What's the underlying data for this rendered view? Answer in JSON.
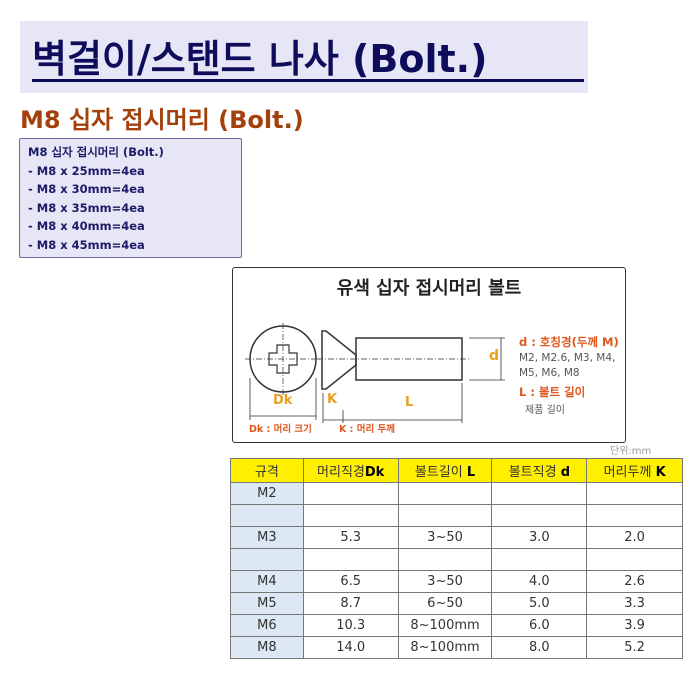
{
  "title": "벽걸이/스탠드 나사 (Bolt.)",
  "subtitle": "M8 십자 접시머리 (Bolt.)",
  "contents": {
    "heading": "M8 십자 접시머리 (Bolt.)",
    "items": [
      "- M8 x 25mm=4ea",
      "- M8 x 30mm=4ea",
      "- M8 x 35mm=4ea",
      "- M8 x 40mm=4ea",
      "- M8 x 45mm=4ea"
    ]
  },
  "diagram": {
    "title": "유색 십자 접시머리 볼트",
    "dk": "Dk",
    "k": "K",
    "l": "L",
    "d": "d",
    "dk_caption": "Dk : 머리 크기",
    "k_caption": "K : 머리 두께",
    "d_label": "d : 호칭경(두께 M)",
    "d_values_1": "M2, M2.6, M3, M4,",
    "d_values_2": "M5, M6, M8",
    "l_label": "L : 볼트 길이",
    "l_desc": "제품 길이"
  },
  "unit": "단위:mm",
  "table": {
    "headers": [
      {
        "text": "규격",
        "sym": ""
      },
      {
        "text": "머리직경",
        "sym": "Dk"
      },
      {
        "text": "볼트길이 ",
        "sym": "L"
      },
      {
        "text": "볼트직경 ",
        "sym": "d"
      },
      {
        "text": "머리두께 ",
        "sym": "K"
      }
    ],
    "rows": [
      [
        "M2",
        "",
        "",
        "",
        ""
      ],
      [
        "",
        "",
        "",
        "",
        ""
      ],
      [
        "M3",
        "5.3",
        "3~50",
        "3.0",
        "2.0"
      ],
      [
        "",
        "",
        "",
        "",
        ""
      ],
      [
        "M4",
        "6.5",
        "3~50",
        "4.0",
        "2.6"
      ],
      [
        "M5",
        "8.7",
        "6~50",
        "5.0",
        "3.3"
      ],
      [
        "M6",
        "10.3",
        "8~100mm",
        "6.0",
        "3.9"
      ],
      [
        "M8",
        "14.0",
        "8~100mm",
        "8.0",
        "5.2"
      ]
    ]
  },
  "colors": {
    "title": "#0d0d5c",
    "subtitle": "#a3400c",
    "header_bg": "#ffef00",
    "accent": "#e0561e"
  }
}
